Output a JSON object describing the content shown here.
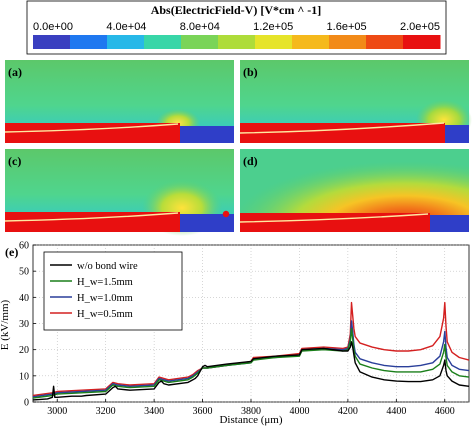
{
  "colorbar": {
    "title": "Abs(ElectricField-V) [V*cm ^ -1]",
    "ticks": [
      "0.0e+00",
      "4.0e+04",
      "8.0e+04",
      "1.2e+05",
      "1.6e+05",
      "2.0e+05"
    ],
    "colors": [
      "#3a3fc0",
      "#1f78f0",
      "#27b8e8",
      "#38d6a8",
      "#7ad458",
      "#aedc3a",
      "#e6e42a",
      "#f5b91c",
      "#f28a18",
      "#ee4a14",
      "#e81010"
    ]
  },
  "panels": [
    {
      "label": "(a)"
    },
    {
      "label": "(b)"
    },
    {
      "label": "(c)"
    },
    {
      "label": "(d)"
    }
  ],
  "chart_data": {
    "type": "line",
    "panel_label": "(e)",
    "xlabel": "Distance (μm)",
    "ylabel": "E (kV/mm)",
    "xlim": [
      2900,
      4700
    ],
    "ylim": [
      0,
      60
    ],
    "xticks": [
      "3000",
      "3200",
      "3400",
      "3600",
      "3800",
      "4000",
      "4200",
      "4400",
      "4600"
    ],
    "yticks": [
      "0",
      "10",
      "20",
      "30",
      "40",
      "50",
      "60"
    ],
    "legend": {
      "placement": "top-left"
    },
    "series": [
      {
        "name": "w/o bond wire",
        "color": "#000000",
        "x": [
          2900,
          2960,
          2980,
          2985,
          2990,
          3000,
          3060,
          3100,
          3120,
          3200,
          3230,
          3240,
          3250,
          3300,
          3400,
          3420,
          3430,
          3440,
          3460,
          3540,
          3560,
          3570,
          3580,
          3600,
          3610,
          3620,
          3700,
          3800,
          3810,
          3900,
          4000,
          4010,
          4100,
          4180,
          4200,
          4210,
          4215,
          4220,
          4225,
          4230,
          4250,
          4300,
          4350,
          4400,
          4450,
          4500,
          4550,
          4580,
          4595,
          4600,
          4605,
          4610,
          4630,
          4660,
          4700
        ],
        "y": [
          0.8,
          1.2,
          1.8,
          6.0,
          1.8,
          1.8,
          2.2,
          2.2,
          2.5,
          3.0,
          5.5,
          6.0,
          5.0,
          4.5,
          5.0,
          7.5,
          8.0,
          7.0,
          6.5,
          7.5,
          8.5,
          9.0,
          10.0,
          13.5,
          14.0,
          13.5,
          14.5,
          15.5,
          16.5,
          17.5,
          18.0,
          20.0,
          20.5,
          19.5,
          19.5,
          21.0,
          23.0,
          21.0,
          18.0,
          15.0,
          11.5,
          9.5,
          8.5,
          8.0,
          7.8,
          7.8,
          8.5,
          10.0,
          14.0,
          16.0,
          12.0,
          10.0,
          8.0,
          6.5,
          6.0
        ]
      },
      {
        "name": "H_w=1.5mm",
        "color": "#1a7f1a",
        "x": [
          2900,
          2980,
          3000,
          3100,
          3200,
          3230,
          3250,
          3300,
          3400,
          3420,
          3440,
          3460,
          3540,
          3560,
          3580,
          3600,
          3620,
          3700,
          3800,
          3810,
          3900,
          4000,
          4010,
          4100,
          4180,
          4200,
          4210,
          4215,
          4220,
          4225,
          4230,
          4250,
          4300,
          4350,
          4400,
          4450,
          4500,
          4550,
          4580,
          4595,
          4600,
          4605,
          4610,
          4630,
          4660,
          4700
        ],
        "y": [
          1.5,
          2.5,
          3.0,
          3.5,
          4.0,
          6.5,
          6.0,
          5.5,
          6.0,
          8.5,
          8.0,
          7.5,
          8.5,
          9.5,
          11.0,
          13.0,
          13.0,
          14.0,
          15.0,
          16.0,
          17.0,
          17.5,
          19.5,
          20.0,
          19.5,
          20.0,
          23.0,
          28.0,
          24.0,
          20.0,
          17.5,
          14.5,
          13.0,
          12.0,
          11.5,
          11.5,
          11.5,
          12.5,
          14.5,
          19.0,
          22.0,
          17.0,
          14.0,
          11.5,
          10.0,
          9.5
        ]
      },
      {
        "name": "H_w=1.0mm",
        "color": "#2a3f9a",
        "x": [
          2900,
          2980,
          3000,
          3100,
          3200,
          3230,
          3250,
          3300,
          3400,
          3420,
          3440,
          3460,
          3540,
          3560,
          3580,
          3600,
          3620,
          3700,
          3800,
          3810,
          3900,
          4000,
          4010,
          4100,
          4180,
          4200,
          4210,
          4215,
          4220,
          4225,
          4230,
          4250,
          4300,
          4350,
          4400,
          4450,
          4500,
          4550,
          4580,
          4595,
          4600,
          4605,
          4610,
          4630,
          4660,
          4700
        ],
        "y": [
          2.0,
          3.0,
          3.5,
          4.0,
          4.5,
          7.0,
          6.5,
          6.0,
          6.5,
          9.0,
          8.5,
          8.0,
          9.0,
          10.0,
          11.5,
          13.0,
          13.0,
          14.0,
          15.0,
          16.5,
          17.0,
          18.0,
          20.0,
          20.5,
          20.0,
          20.5,
          24.0,
          31.0,
          27.0,
          22.0,
          19.0,
          16.5,
          15.0,
          14.0,
          13.5,
          13.5,
          14.0,
          15.0,
          17.5,
          23.0,
          27.0,
          21.0,
          17.0,
          14.0,
          12.5,
          12.0
        ]
      },
      {
        "name": "H_w=0.5mm",
        "color": "#d42020",
        "x": [
          2900,
          2980,
          3000,
          3100,
          3200,
          3230,
          3250,
          3300,
          3400,
          3420,
          3440,
          3460,
          3540,
          3560,
          3580,
          3600,
          3620,
          3700,
          3800,
          3810,
          3900,
          4000,
          4010,
          4100,
          4180,
          4200,
          4210,
          4215,
          4220,
          4225,
          4230,
          4250,
          4300,
          4350,
          4400,
          4450,
          4500,
          4550,
          4580,
          4595,
          4600,
          4605,
          4610,
          4630,
          4660,
          4700
        ],
        "y": [
          2.5,
          3.5,
          4.0,
          4.5,
          5.0,
          7.5,
          7.0,
          6.5,
          7.0,
          9.5,
          9.0,
          8.5,
          9.5,
          10.5,
          12.0,
          13.0,
          13.0,
          14.0,
          15.5,
          17.0,
          17.5,
          18.5,
          20.5,
          21.0,
          20.5,
          21.0,
          26.0,
          38.0,
          33.0,
          28.0,
          25.0,
          22.5,
          21.0,
          20.0,
          19.5,
          19.5,
          20.0,
          21.5,
          25.0,
          32.0,
          38.0,
          29.0,
          23.0,
          19.0,
          17.0,
          16.0
        ]
      }
    ]
  }
}
